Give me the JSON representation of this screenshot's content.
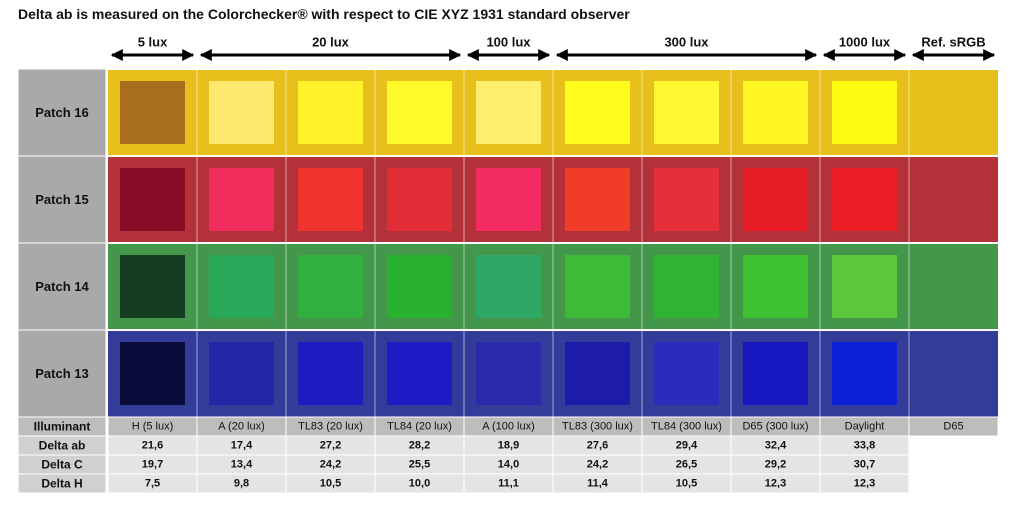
{
  "title": "Delta ab is measured on the Colorchecker® with respect to CIE XYZ 1931 standard observer",
  "lux_groups": [
    {
      "label": "5 lux",
      "from": 0,
      "to": 0
    },
    {
      "label": "20 lux",
      "from": 1,
      "to": 3
    },
    {
      "label": "100 lux",
      "from": 4,
      "to": 4
    },
    {
      "label": "300 lux",
      "from": 5,
      "to": 7
    },
    {
      "label": "1000 lux",
      "from": 8,
      "to": 8
    },
    {
      "label": "Ref. sRGB",
      "from": 9,
      "to": 9
    }
  ],
  "chart_data": {
    "type": "table",
    "title": "Delta ab is measured on the Colorchecker® with respect to CIE XYZ 1931 standard observer",
    "row_header_label": "Illuminant",
    "illuminants": [
      "H (5 lux)",
      "A (20 lux)",
      "TL83 (20 lux)",
      "TL84 (20 lux)",
      "A (100 lux)",
      "TL83 (300 lux)",
      "TL84 (300 lux)",
      "D65 (300 lux)",
      "Daylight",
      "D65"
    ],
    "patches": [
      {
        "name": "Patch 16",
        "ref_color": "#e8c01c",
        "swatches": [
          "#a86e1e",
          "#ffe96e",
          "#fff22a",
          "#fff82a",
          "#ffef6c",
          "#fffc1e",
          "#fff830",
          "#fff622",
          "#fffc12"
        ]
      },
      {
        "name": "Patch 15",
        "ref_color": "#b33138",
        "swatches": [
          "#880c26",
          "#f22c5c",
          "#ef3430",
          "#e22c36",
          "#f42c62",
          "#f23c2a",
          "#e62f38",
          "#e81c24",
          "#ea1e24"
        ]
      },
      {
        "name": "Patch 14",
        "ref_color": "#43964a",
        "swatches": [
          "#153c20",
          "#2aa85a",
          "#32b03e",
          "#29b230",
          "#2ea865",
          "#3cba38",
          "#2eb432",
          "#3ec232",
          "#5ac83a"
        ]
      },
      {
        "name": "Patch 13",
        "ref_color": "#343c9a",
        "swatches": [
          "#0c0c3c",
          "#2426a8",
          "#1c1cc0",
          "#1e1cc4",
          "#2a2aaa",
          "#1c1ca8",
          "#2a2cbc",
          "#1818c0",
          "#0c20d6"
        ]
      }
    ],
    "metrics": [
      {
        "name": "Delta ab",
        "values": [
          "21,6",
          "17,4",
          "27,2",
          "28,2",
          "18,9",
          "27,6",
          "29,4",
          "32,4",
          "33,8"
        ]
      },
      {
        "name": "Delta C",
        "values": [
          "19,7",
          "13,4",
          "24,2",
          "25,5",
          "14,0",
          "24,2",
          "26,5",
          "29,2",
          "30,7"
        ]
      },
      {
        "name": "Delta H",
        "values": [
          "7,5",
          "9,8",
          "10,5",
          "10,0",
          "11,1",
          "11,4",
          "10,5",
          "12,3",
          "12,3"
        ]
      }
    ]
  },
  "colors": {
    "row_header_bg": "#a9a9a9",
    "illuminant_row_bg": "#bdbdbd",
    "metric_label_bg": "#d0d0d0",
    "metric_cell_bg": "#e4e4e4",
    "arrow": "#000000"
  }
}
